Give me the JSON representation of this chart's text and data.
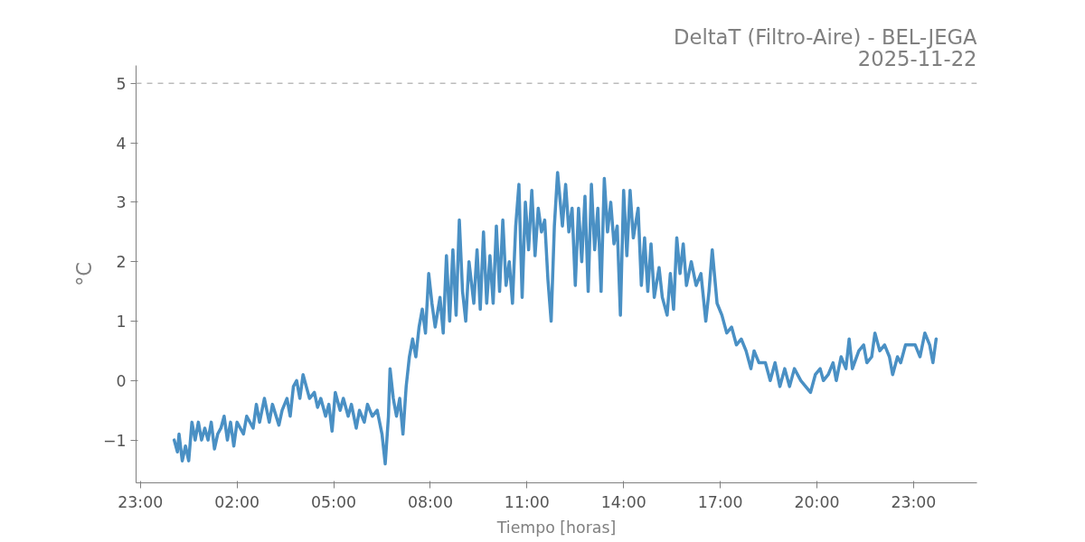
{
  "chart_data": {
    "type": "line",
    "title": "DeltaT (Filtro-Aire) - BEL-JEGA",
    "subtitle": "2025-11-22",
    "xlabel": "Tiempo [horas]",
    "ylabel": "°C",
    "xlim": [
      "2025-11-21T22:52",
      "2025-11-23T00:58"
    ],
    "ylim": [
      -1.72,
      5.3
    ],
    "xticks": [
      {
        "value": "2025-11-21T23:00",
        "label": "23:00"
      },
      {
        "value": "2025-11-22T02:00",
        "label": "02:00"
      },
      {
        "value": "2025-11-22T05:00",
        "label": "05:00"
      },
      {
        "value": "2025-11-22T08:00",
        "label": "08:00"
      },
      {
        "value": "2025-11-22T11:00",
        "label": "11:00"
      },
      {
        "value": "2025-11-22T14:00",
        "label": "14:00"
      },
      {
        "value": "2025-11-22T17:00",
        "label": "17:00"
      },
      {
        "value": "2025-11-22T20:00",
        "label": "20:00"
      },
      {
        "value": "2025-11-22T23:00",
        "label": "23:00"
      }
    ],
    "yticks": [
      {
        "value": -1,
        "label": "−1"
      },
      0,
      1,
      2,
      3,
      4,
      5
    ],
    "grid": false,
    "line_style": "solid",
    "ref_lines": [
      {
        "axis": "y",
        "value": 5,
        "color": "#bbbbbb",
        "line_style": "dashed"
      }
    ],
    "series": [
      {
        "color": "#4a90c4",
        "x": [
          "2025-11-22T00:03",
          "2025-11-22T00:09",
          "2025-11-22T00:12",
          "2025-11-22T00:18",
          "2025-11-22T00:24",
          "2025-11-22T00:30",
          "2025-11-22T00:36",
          "2025-11-22T00:42",
          "2025-11-22T00:48",
          "2025-11-22T00:54",
          "2025-11-22T01:00",
          "2025-11-22T01:06",
          "2025-11-22T01:12",
          "2025-11-22T01:18",
          "2025-11-22T01:24",
          "2025-11-22T01:30",
          "2025-11-22T01:36",
          "2025-11-22T01:42",
          "2025-11-22T01:48",
          "2025-11-22T01:54",
          "2025-11-22T02:00",
          "2025-11-22T02:12",
          "2025-11-22T02:18",
          "2025-11-22T02:30",
          "2025-11-22T02:36",
          "2025-11-22T02:42",
          "2025-11-22T02:51",
          "2025-11-22T03:00",
          "2025-11-22T03:06",
          "2025-11-22T03:18",
          "2025-11-22T03:24",
          "2025-11-22T03:33",
          "2025-11-22T03:39",
          "2025-11-22T03:45",
          "2025-11-22T03:51",
          "2025-11-22T03:57",
          "2025-11-22T04:03",
          "2025-11-22T04:09",
          "2025-11-22T04:15",
          "2025-11-22T04:24",
          "2025-11-22T04:30",
          "2025-11-22T04:36",
          "2025-11-22T04:45",
          "2025-11-22T04:51",
          "2025-11-22T04:57",
          "2025-11-22T05:03",
          "2025-11-22T05:12",
          "2025-11-22T05:18",
          "2025-11-22T05:27",
          "2025-11-22T05:33",
          "2025-11-22T05:42",
          "2025-11-22T05:48",
          "2025-11-22T05:57",
          "2025-11-22T06:03",
          "2025-11-22T06:12",
          "2025-11-22T06:21",
          "2025-11-22T06:30",
          "2025-11-22T06:36",
          "2025-11-22T06:42",
          "2025-11-22T06:45",
          "2025-11-22T06:51",
          "2025-11-22T06:57",
          "2025-11-22T07:03",
          "2025-11-22T07:09",
          "2025-11-22T07:15",
          "2025-11-22T07:21",
          "2025-11-22T07:27",
          "2025-11-22T07:33",
          "2025-11-22T07:39",
          "2025-11-22T07:45",
          "2025-11-22T07:51",
          "2025-11-22T07:57",
          "2025-11-22T08:03",
          "2025-11-22T08:09",
          "2025-11-22T08:18",
          "2025-11-22T08:24",
          "2025-11-22T08:30",
          "2025-11-22T08:36",
          "2025-11-22T08:42",
          "2025-11-22T08:48",
          "2025-11-22T08:54",
          "2025-11-22T09:00",
          "2025-11-22T09:06",
          "2025-11-22T09:12",
          "2025-11-22T09:21",
          "2025-11-22T09:27",
          "2025-11-22T09:33",
          "2025-11-22T09:39",
          "2025-11-22T09:45",
          "2025-11-22T09:51",
          "2025-11-22T09:57",
          "2025-11-22T10:03",
          "2025-11-22T10:09",
          "2025-11-22T10:15",
          "2025-11-22T10:21",
          "2025-11-22T10:27",
          "2025-11-22T10:33",
          "2025-11-22T10:39",
          "2025-11-22T10:45",
          "2025-11-22T10:51",
          "2025-11-22T10:57",
          "2025-11-22T11:03",
          "2025-11-22T11:09",
          "2025-11-22T11:15",
          "2025-11-22T11:21",
          "2025-11-22T11:27",
          "2025-11-22T11:33",
          "2025-11-22T11:39",
          "2025-11-22T11:45",
          "2025-11-22T11:51",
          "2025-11-22T11:57",
          "2025-11-22T12:06",
          "2025-11-22T12:12",
          "2025-11-22T12:18",
          "2025-11-22T12:24",
          "2025-11-22T12:30",
          "2025-11-22T12:36",
          "2025-11-22T12:42",
          "2025-11-22T12:48",
          "2025-11-22T12:54",
          "2025-11-22T13:00",
          "2025-11-22T13:06",
          "2025-11-22T13:12",
          "2025-11-22T13:18",
          "2025-11-22T13:24",
          "2025-11-22T13:30",
          "2025-11-22T13:36",
          "2025-11-22T13:42",
          "2025-11-22T13:48",
          "2025-11-22T13:54",
          "2025-11-22T14:00",
          "2025-11-22T14:06",
          "2025-11-22T14:12",
          "2025-11-22T14:18",
          "2025-11-22T14:27",
          "2025-11-22T14:33",
          "2025-11-22T14:39",
          "2025-11-22T14:45",
          "2025-11-22T14:51",
          "2025-11-22T14:57",
          "2025-11-22T15:06",
          "2025-11-22T15:12",
          "2025-11-22T15:21",
          "2025-11-22T15:27",
          "2025-11-22T15:33",
          "2025-11-22T15:39",
          "2025-11-22T15:45",
          "2025-11-22T15:51",
          "2025-11-22T15:57",
          "2025-11-22T16:06",
          "2025-11-22T16:15",
          "2025-11-22T16:24",
          "2025-11-22T16:33",
          "2025-11-22T16:39",
          "2025-11-22T16:45",
          "2025-11-22T16:54",
          "2025-11-22T17:03",
          "2025-11-22T17:12",
          "2025-11-22T17:21",
          "2025-11-22T17:30",
          "2025-11-22T17:39",
          "2025-11-22T17:48",
          "2025-11-22T17:57",
          "2025-11-22T18:03",
          "2025-11-22T18:12",
          "2025-11-22T18:24",
          "2025-11-22T18:33",
          "2025-11-22T18:42",
          "2025-11-22T18:51",
          "2025-11-22T19:00",
          "2025-11-22T19:09",
          "2025-11-22T19:18",
          "2025-11-22T19:30",
          "2025-11-22T19:39",
          "2025-11-22T19:48",
          "2025-11-22T19:57",
          "2025-11-22T20:06",
          "2025-11-22T20:12",
          "2025-11-22T20:21",
          "2025-11-22T20:30",
          "2025-11-22T20:36",
          "2025-11-22T20:45",
          "2025-11-22T20:54",
          "2025-11-22T21:00",
          "2025-11-22T21:06",
          "2025-11-22T21:18",
          "2025-11-22T21:27",
          "2025-11-22T21:33",
          "2025-11-22T21:42",
          "2025-11-22T21:48",
          "2025-11-22T21:57",
          "2025-11-22T22:06",
          "2025-11-22T22:15",
          "2025-11-22T22:21",
          "2025-11-22T22:30",
          "2025-11-22T22:36",
          "2025-11-22T22:45",
          "2025-11-22T22:54",
          "2025-11-22T23:03",
          "2025-11-22T23:12",
          "2025-11-22T23:21",
          "2025-11-22T23:30",
          "2025-11-22T23:36",
          "2025-11-22T23:42"
        ],
        "values": [
          -1.0,
          -1.2,
          -0.9,
          -1.35,
          -1.1,
          -1.35,
          -0.7,
          -1.0,
          -0.7,
          -1.0,
          -0.8,
          -1.0,
          -0.7,
          -1.15,
          -0.9,
          -0.8,
          -0.6,
          -1.0,
          -0.7,
          -1.1,
          -0.7,
          -0.9,
          -0.6,
          -0.8,
          -0.4,
          -0.7,
          -0.3,
          -0.7,
          -0.4,
          -0.75,
          -0.5,
          -0.3,
          -0.6,
          -0.1,
          0.0,
          -0.3,
          0.1,
          -0.1,
          -0.3,
          -0.2,
          -0.45,
          -0.3,
          -0.6,
          -0.4,
          -0.85,
          -0.2,
          -0.5,
          -0.3,
          -0.6,
          -0.4,
          -0.8,
          -0.5,
          -0.7,
          -0.4,
          -0.6,
          -0.5,
          -0.9,
          -1.4,
          -0.6,
          0.2,
          -0.3,
          -0.6,
          -0.3,
          -0.9,
          -0.1,
          0.4,
          0.7,
          0.4,
          0.9,
          1.2,
          0.8,
          1.8,
          1.3,
          0.9,
          1.4,
          0.8,
          2.1,
          1.0,
          2.2,
          1.1,
          2.7,
          1.5,
          1.0,
          2.0,
          1.3,
          2.2,
          1.2,
          2.5,
          1.3,
          2.1,
          1.3,
          2.6,
          1.5,
          2.7,
          1.6,
          2.0,
          1.3,
          2.6,
          3.3,
          1.4,
          3.0,
          2.2,
          3.2,
          2.1,
          2.9,
          2.5,
          2.7,
          1.7,
          1.0,
          2.6,
          3.5,
          2.6,
          3.3,
          2.5,
          2.9,
          1.6,
          2.9,
          2.0,
          3.1,
          1.5,
          3.3,
          2.2,
          2.9,
          1.5,
          3.4,
          2.5,
          3.0,
          2.3,
          2.6,
          1.1,
          3.2,
          2.1,
          3.2,
          2.4,
          2.9,
          1.6,
          2.4,
          1.5,
          2.3,
          1.4,
          1.9,
          1.4,
          1.1,
          1.8,
          1.2,
          2.4,
          1.8,
          2.3,
          1.6,
          2.0,
          1.6,
          1.8,
          1.0,
          1.5,
          2.2,
          1.3,
          1.1,
          0.8,
          0.9,
          0.6,
          0.7,
          0.5,
          0.2,
          0.5,
          0.3,
          0.3,
          0.0,
          0.3,
          -0.1,
          0.2,
          -0.1,
          0.2,
          0.0,
          -0.1,
          -0.2,
          0.1,
          0.2,
          0.0,
          0.1,
          0.3,
          0.0,
          0.4,
          0.2,
          0.7,
          0.2,
          0.5,
          0.6,
          0.3,
          0.4,
          0.8,
          0.5,
          0.6,
          0.4,
          0.1,
          0.4,
          0.3,
          0.6,
          0.6,
          0.6,
          0.4,
          0.8,
          0.6,
          0.3,
          0.7
        ]
      }
    ]
  }
}
